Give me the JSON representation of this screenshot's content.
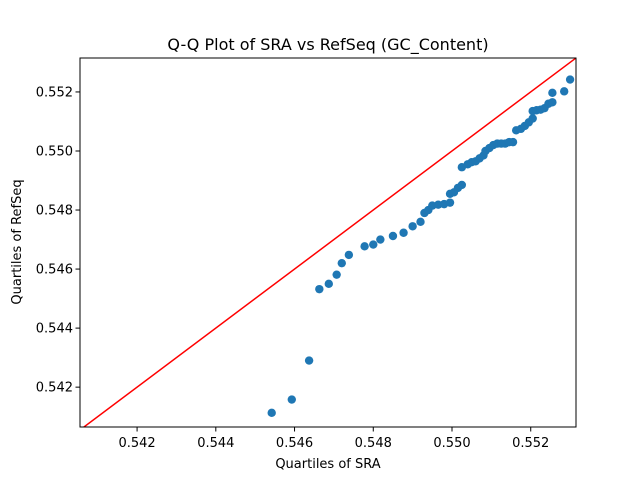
{
  "chart_data": {
    "type": "scatter",
    "title": "Q-Q Plot of SRA vs RefSeq (GC_Content)",
    "xlabel": "Quartiles of SRA",
    "ylabel": "Quartiles of RefSeq",
    "xlim": [
      0.54055,
      0.55315
    ],
    "ylim": [
      0.54065,
      0.55315
    ],
    "xticks": [
      0.542,
      0.544,
      0.546,
      0.548,
      0.55,
      0.552
    ],
    "yticks": [
      0.542,
      0.544,
      0.546,
      0.548,
      0.55,
      0.552
    ],
    "xtick_labels": [
      "0.542",
      "0.544",
      "0.546",
      "0.548",
      "0.550",
      "0.552"
    ],
    "ytick_labels": [
      "0.542",
      "0.544",
      "0.546",
      "0.548",
      "0.550",
      "0.552"
    ],
    "grid": false,
    "reference_line": {
      "type": "y=x",
      "color": "#ff0000"
    },
    "marker_color": "#1f77b4",
    "points": [
      [
        0.54542,
        0.54113
      ],
      [
        0.54593,
        0.54158
      ],
      [
        0.54637,
        0.5429
      ],
      [
        0.54663,
        0.54532
      ],
      [
        0.54687,
        0.5455
      ],
      [
        0.54707,
        0.54581
      ],
      [
        0.5472,
        0.5462
      ],
      [
        0.54738,
        0.54648
      ],
      [
        0.54778,
        0.54677
      ],
      [
        0.548,
        0.54683
      ],
      [
        0.54818,
        0.547
      ],
      [
        0.5485,
        0.54712
      ],
      [
        0.54877,
        0.54723
      ],
      [
        0.549,
        0.54745
      ],
      [
        0.5492,
        0.5476
      ],
      [
        0.5493,
        0.5479
      ],
      [
        0.5494,
        0.548
      ],
      [
        0.5495,
        0.54815
      ],
      [
        0.54965,
        0.54818
      ],
      [
        0.5498,
        0.5482
      ],
      [
        0.54995,
        0.54825
      ],
      [
        0.54995,
        0.54855
      ],
      [
        0.55005,
        0.5486
      ],
      [
        0.55015,
        0.54875
      ],
      [
        0.55025,
        0.54885
      ],
      [
        0.55025,
        0.54945
      ],
      [
        0.5504,
        0.54955
      ],
      [
        0.5505,
        0.54962
      ],
      [
        0.5506,
        0.54965
      ],
      [
        0.5507,
        0.54975
      ],
      [
        0.5508,
        0.54985
      ],
      [
        0.55085,
        0.55
      ],
      [
        0.55095,
        0.5501
      ],
      [
        0.55105,
        0.5502
      ],
      [
        0.55115,
        0.55025
      ],
      [
        0.55125,
        0.55025
      ],
      [
        0.55135,
        0.55025
      ],
      [
        0.55145,
        0.5503
      ],
      [
        0.55155,
        0.5503
      ],
      [
        0.55163,
        0.5507
      ],
      [
        0.55175,
        0.55075
      ],
      [
        0.55185,
        0.55085
      ],
      [
        0.55195,
        0.55097
      ],
      [
        0.55205,
        0.5511
      ],
      [
        0.55205,
        0.55135
      ],
      [
        0.55215,
        0.55138
      ],
      [
        0.55225,
        0.5514
      ],
      [
        0.55235,
        0.55145
      ],
      [
        0.55245,
        0.5516
      ],
      [
        0.55255,
        0.55165
      ],
      [
        0.55255,
        0.55197
      ],
      [
        0.55285,
        0.55202
      ],
      [
        0.553,
        0.55242
      ]
    ]
  }
}
